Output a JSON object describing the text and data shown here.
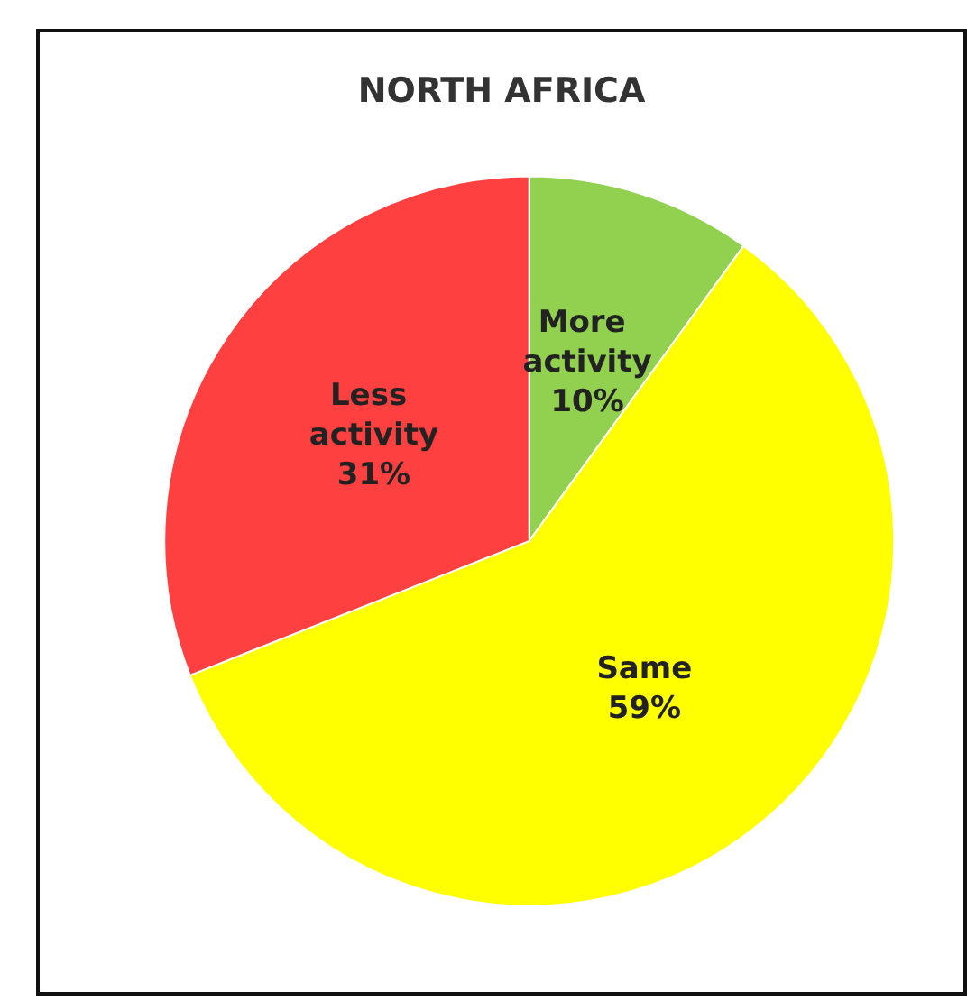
{
  "chart_data": {
    "type": "pie",
    "title": "NORTH AFRICA",
    "categories": [
      "More activity",
      "Same",
      "Less activity"
    ],
    "values": [
      10,
      59,
      31
    ],
    "value_labels": [
      "10%",
      "59%",
      "31%"
    ],
    "colors": [
      "#92d050",
      "#ffff00",
      "#ff4040"
    ],
    "legend": false
  }
}
